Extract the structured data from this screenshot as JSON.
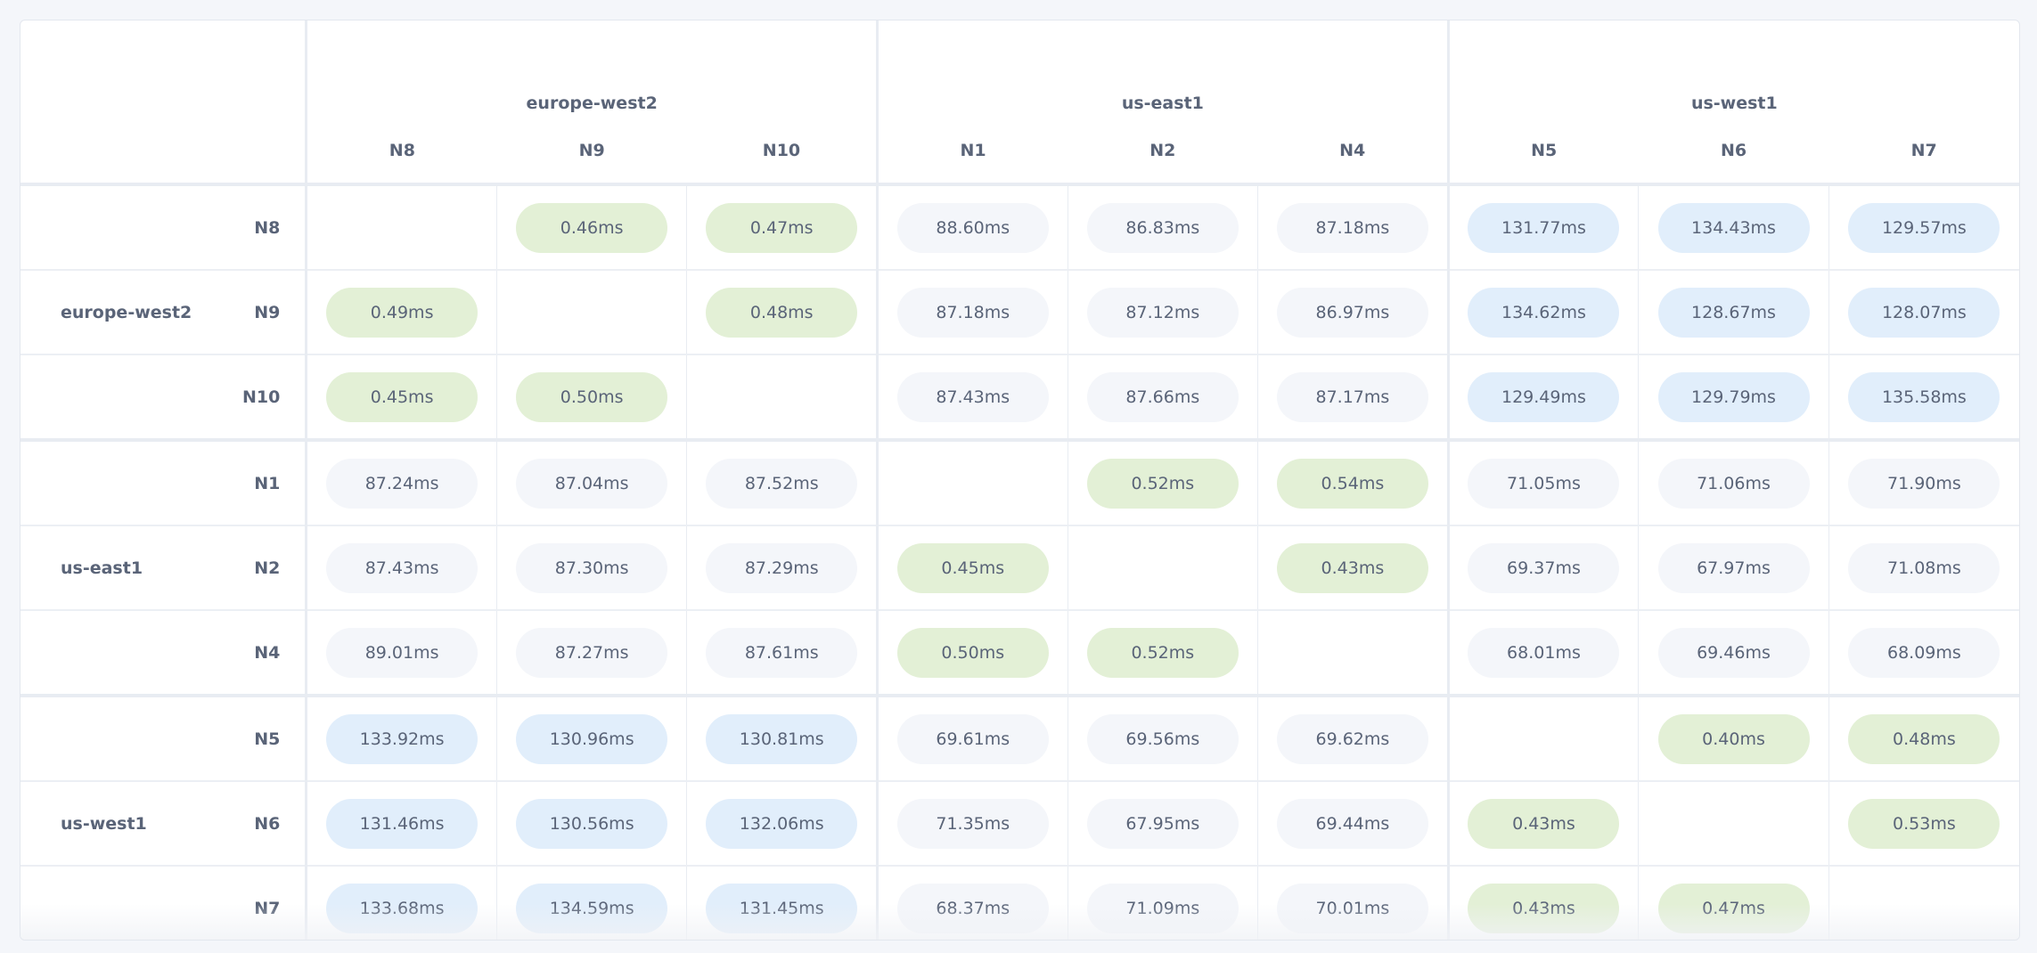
{
  "colors": {
    "green": "#e3f0d6",
    "blue": "#e1eefb",
    "gray": "#f4f6fa",
    "text": "#5a6478"
  },
  "column_groups": [
    {
      "region": "europe-west2",
      "nodes": [
        "N8",
        "N9",
        "N10"
      ]
    },
    {
      "region": "us-east1",
      "nodes": [
        "N1",
        "N2",
        "N4"
      ]
    },
    {
      "region": "us-west1",
      "nodes": [
        "N5",
        "N6",
        "N7"
      ]
    }
  ],
  "row_groups": [
    {
      "region": "europe-west2",
      "rows": [
        {
          "node": "N8",
          "cells": [
            "",
            "0.46ms",
            "0.47ms",
            "88.60ms",
            "86.83ms",
            "87.18ms",
            "131.77ms",
            "134.43ms",
            "129.57ms"
          ],
          "tones": [
            "none",
            "green",
            "green",
            "gray",
            "gray",
            "gray",
            "blue",
            "blue",
            "blue"
          ]
        },
        {
          "node": "N9",
          "cells": [
            "0.49ms",
            "",
            "0.48ms",
            "87.18ms",
            "87.12ms",
            "86.97ms",
            "134.62ms",
            "128.67ms",
            "128.07ms"
          ],
          "tones": [
            "green",
            "none",
            "green",
            "gray",
            "gray",
            "gray",
            "blue",
            "blue",
            "blue"
          ]
        },
        {
          "node": "N10",
          "cells": [
            "0.45ms",
            "0.50ms",
            "",
            "87.43ms",
            "87.66ms",
            "87.17ms",
            "129.49ms",
            "129.79ms",
            "135.58ms"
          ],
          "tones": [
            "green",
            "green",
            "none",
            "gray",
            "gray",
            "gray",
            "blue",
            "blue",
            "blue"
          ]
        }
      ]
    },
    {
      "region": "us-east1",
      "rows": [
        {
          "node": "N1",
          "cells": [
            "87.24ms",
            "87.04ms",
            "87.52ms",
            "",
            "0.52ms",
            "0.54ms",
            "71.05ms",
            "71.06ms",
            "71.90ms"
          ],
          "tones": [
            "gray",
            "gray",
            "gray",
            "none",
            "green",
            "green",
            "gray",
            "gray",
            "gray"
          ]
        },
        {
          "node": "N2",
          "cells": [
            "87.43ms",
            "87.30ms",
            "87.29ms",
            "0.45ms",
            "",
            "0.43ms",
            "69.37ms",
            "67.97ms",
            "71.08ms"
          ],
          "tones": [
            "gray",
            "gray",
            "gray",
            "green",
            "none",
            "green",
            "gray",
            "gray",
            "gray"
          ]
        },
        {
          "node": "N4",
          "cells": [
            "89.01ms",
            "87.27ms",
            "87.61ms",
            "0.50ms",
            "0.52ms",
            "",
            "68.01ms",
            "69.46ms",
            "68.09ms"
          ],
          "tones": [
            "gray",
            "gray",
            "gray",
            "green",
            "green",
            "none",
            "gray",
            "gray",
            "gray"
          ]
        }
      ]
    },
    {
      "region": "us-west1",
      "rows": [
        {
          "node": "N5",
          "cells": [
            "133.92ms",
            "130.96ms",
            "130.81ms",
            "69.61ms",
            "69.56ms",
            "69.62ms",
            "",
            "0.40ms",
            "0.48ms"
          ],
          "tones": [
            "blue",
            "blue",
            "blue",
            "gray",
            "gray",
            "gray",
            "none",
            "green",
            "green"
          ]
        },
        {
          "node": "N6",
          "cells": [
            "131.46ms",
            "130.56ms",
            "132.06ms",
            "71.35ms",
            "67.95ms",
            "69.44ms",
            "0.43ms",
            "",
            "0.53ms"
          ],
          "tones": [
            "blue",
            "blue",
            "blue",
            "gray",
            "gray",
            "gray",
            "green",
            "none",
            "green"
          ]
        },
        {
          "node": "N7",
          "cells": [
            "133.68ms",
            "134.59ms",
            "131.45ms",
            "68.37ms",
            "71.09ms",
            "70.01ms",
            "0.43ms",
            "0.47ms",
            ""
          ],
          "tones": [
            "blue",
            "blue",
            "blue",
            "gray",
            "gray",
            "gray",
            "green",
            "green",
            "none"
          ]
        }
      ]
    }
  ]
}
